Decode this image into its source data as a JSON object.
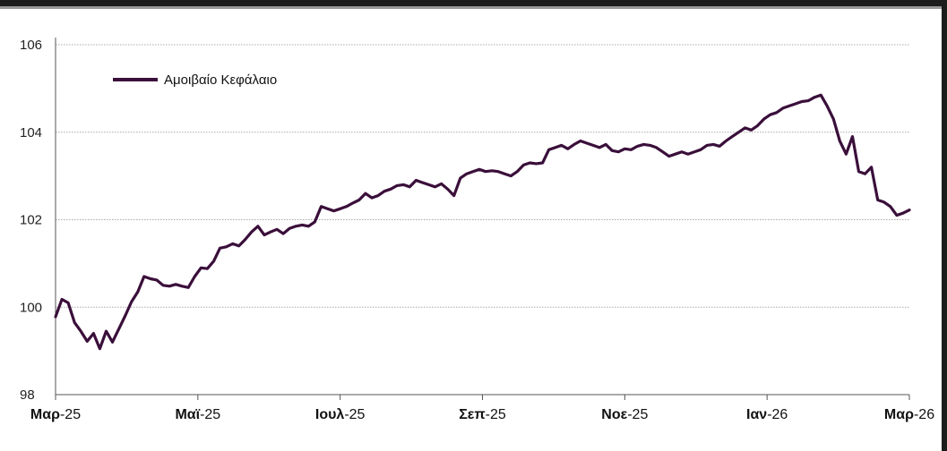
{
  "chart_data": {
    "type": "line",
    "title": "",
    "xlabel": "",
    "ylabel": "",
    "ylim": [
      98,
      106
    ],
    "yticks": [
      "98",
      "100",
      "102",
      "104",
      "106"
    ],
    "xticks": [
      {
        "bold": "Μαρ",
        "rest": "-25"
      },
      {
        "bold": "Μαϊ",
        "rest": "-25"
      },
      {
        "bold": "Ιουλ",
        "rest": "-25"
      },
      {
        "bold": "Σεπ",
        "rest": "-25"
      },
      {
        "bold": "Νοε",
        "rest": "-25"
      },
      {
        "bold": "Ιαν",
        "rest": "-26"
      },
      {
        "bold": "Μαρ",
        "rest": "-26"
      }
    ],
    "grid": true,
    "legend": "top-left",
    "color": "#3a0f3a",
    "series": [
      {
        "name": "Αμοιβαίο Κεφάλαιο",
        "x_range": [
          "Μαρ-25",
          "Μαρ-26"
        ],
        "values": [
          99.78,
          100.18,
          100.1,
          99.65,
          99.45,
          99.22,
          99.4,
          99.05,
          99.45,
          99.2,
          99.5,
          99.8,
          100.12,
          100.35,
          100.7,
          100.65,
          100.62,
          100.5,
          100.48,
          100.52,
          100.48,
          100.45,
          100.7,
          100.9,
          100.88,
          101.05,
          101.35,
          101.38,
          101.45,
          101.4,
          101.55,
          101.72,
          101.85,
          101.65,
          101.72,
          101.78,
          101.68,
          101.8,
          101.85,
          101.88,
          101.85,
          101.95,
          102.3,
          102.25,
          102.2,
          102.25,
          102.3,
          102.38,
          102.45,
          102.6,
          102.5,
          102.55,
          102.65,
          102.7,
          102.78,
          102.8,
          102.75,
          102.9,
          102.85,
          102.8,
          102.75,
          102.82,
          102.7,
          102.55,
          102.95,
          103.05,
          103.1,
          103.15,
          103.1,
          103.12,
          103.1,
          103.05,
          103.0,
          103.1,
          103.25,
          103.3,
          103.28,
          103.3,
          103.6,
          103.65,
          103.7,
          103.62,
          103.72,
          103.8,
          103.75,
          103.7,
          103.65,
          103.72,
          103.58,
          103.55,
          103.62,
          103.6,
          103.68,
          103.72,
          103.7,
          103.65,
          103.55,
          103.45,
          103.5,
          103.55,
          103.5,
          103.55,
          103.6,
          103.7,
          103.72,
          103.68,
          103.8,
          103.9,
          104.0,
          104.1,
          104.05,
          104.15,
          104.3,
          104.4,
          104.45,
          104.55,
          104.6,
          104.65,
          104.7,
          104.72,
          104.8,
          104.85,
          104.6,
          104.3,
          103.8,
          103.5,
          103.9,
          103.1,
          103.05,
          103.2,
          102.45,
          102.4,
          102.3,
          102.1,
          102.15,
          102.22
        ]
      }
    ]
  }
}
